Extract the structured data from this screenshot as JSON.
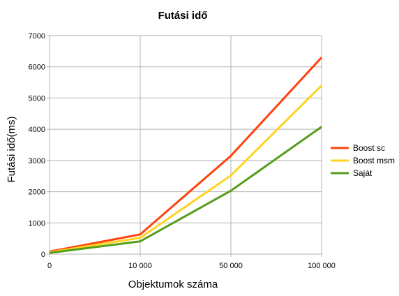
{
  "chart_data": {
    "type": "line",
    "title": "Futási idő",
    "xlabel": "Objektumok száma",
    "ylabel": "Futási idő(ms)",
    "categories": [
      "0",
      "10 000",
      "50 000",
      "100 000"
    ],
    "ylim": [
      0,
      7000
    ],
    "yticks": [
      "0",
      "1000",
      "2000",
      "3000",
      "4000",
      "5000",
      "6000",
      "7000"
    ],
    "grid": true,
    "legend_position": "right",
    "series": [
      {
        "name": "Boost sc",
        "color": "#ff420e",
        "values": [
          80,
          630,
          3150,
          6300
        ]
      },
      {
        "name": "Boost msm",
        "color": "#ffd320",
        "values": [
          60,
          520,
          2520,
          5400
        ]
      },
      {
        "name": "Saját",
        "color": "#579d1c",
        "values": [
          40,
          410,
          2030,
          4080
        ]
      }
    ]
  }
}
